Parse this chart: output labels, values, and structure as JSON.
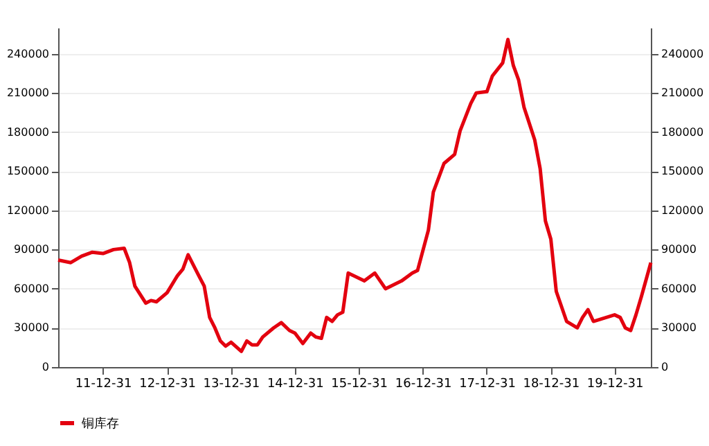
{
  "chart_data": {
    "type": "line",
    "xlim": [
      "2011-04-20",
      "2020-07-25"
    ],
    "xticks": [
      {
        "value": "2011-12-31",
        "label": "11-12-31"
      },
      {
        "value": "2012-12-31",
        "label": "12-12-31"
      },
      {
        "value": "2013-12-31",
        "label": "13-12-31"
      },
      {
        "value": "2014-12-31",
        "label": "14-12-31"
      },
      {
        "value": "2015-12-31",
        "label": "15-12-31"
      },
      {
        "value": "2016-12-31",
        "label": "16-12-31"
      },
      {
        "value": "2017-12-31",
        "label": "17-12-31"
      },
      {
        "value": "2018-12-31",
        "label": "18-12-31"
      },
      {
        "value": "2019-12-31",
        "label": "19-12-31"
      }
    ],
    "ylim": [
      0,
      260000
    ],
    "yticks": [
      0,
      30000,
      60000,
      90000,
      120000,
      150000,
      180000,
      210000,
      240000
    ],
    "y2lim": [
      0,
      260000
    ],
    "y2ticks": [
      0,
      30000,
      60000,
      90000,
      120000,
      150000,
      180000,
      210000,
      240000
    ],
    "grid": "y",
    "legend": "bottom",
    "line_style": "solid",
    "marker": "none",
    "x": [
      "2011-04-20",
      "2011-07",
      "2011-09",
      "2011-11",
      "2012-01",
      "2012-03",
      "2012-05",
      "2012-06",
      "2012-07",
      "2012-09",
      "2012-10",
      "2012-11",
      "2013-01",
      "2013-03",
      "2013-04",
      "2013-05",
      "2013-07",
      "2013-08",
      "2013-09",
      "2013-10",
      "2013-11",
      "2013-12",
      "2014-01",
      "2014-03",
      "2014-04",
      "2014-05",
      "2014-06",
      "2014-07",
      "2014-09",
      "2014-10-15",
      "2014-12",
      "2015-01",
      "2015-02-15",
      "2015-04",
      "2015-05",
      "2015-06",
      "2015-07",
      "2015-08",
      "2015-09",
      "2015-10",
      "2015-11",
      "2016-02",
      "2016-04",
      "2016-06",
      "2016-09",
      "2016-11",
      "2016-12",
      "2017-02",
      "2017-03",
      "2017-05",
      "2017-07",
      "2017-08",
      "2017-10",
      "2017-11",
      "2018-01",
      "2018-02",
      "2018-04",
      "2018-05",
      "2018-06",
      "2018-07",
      "2018-08",
      "2018-10",
      "2018-11",
      "2018-12",
      "2019-01",
      "2019-02",
      "2019-04",
      "2019-06",
      "2019-07",
      "2019-08",
      "2019-09",
      "2019-12-31",
      "2020-02",
      "2020-03",
      "2020-04",
      "2020-05",
      "2020-06",
      "2020-07-25"
    ],
    "series": [
      {
        "name": "铜库存",
        "color": "#e3000f",
        "values": [
          82000,
          80000,
          85000,
          88000,
          87000,
          90000,
          91000,
          80000,
          62000,
          49000,
          51000,
          50000,
          57000,
          70000,
          75000,
          86000,
          70000,
          62000,
          38000,
          30000,
          20000,
          16000,
          19000,
          12000,
          20000,
          17000,
          17000,
          23000,
          30000,
          34000,
          28000,
          26000,
          18000,
          26000,
          23000,
          22000,
          38000,
          35000,
          40000,
          42000,
          72000,
          66000,
          72000,
          60000,
          66000,
          72000,
          74000,
          105000,
          134000,
          156000,
          163000,
          181000,
          202000,
          210000,
          211000,
          223000,
          233000,
          251000,
          231000,
          220000,
          199000,
          174000,
          152000,
          112000,
          98000,
          58000,
          35000,
          30000,
          38000,
          44000,
          35000,
          40000,
          38000,
          30000,
          28000,
          40000,
          54000,
          80000
        ]
      }
    ]
  }
}
